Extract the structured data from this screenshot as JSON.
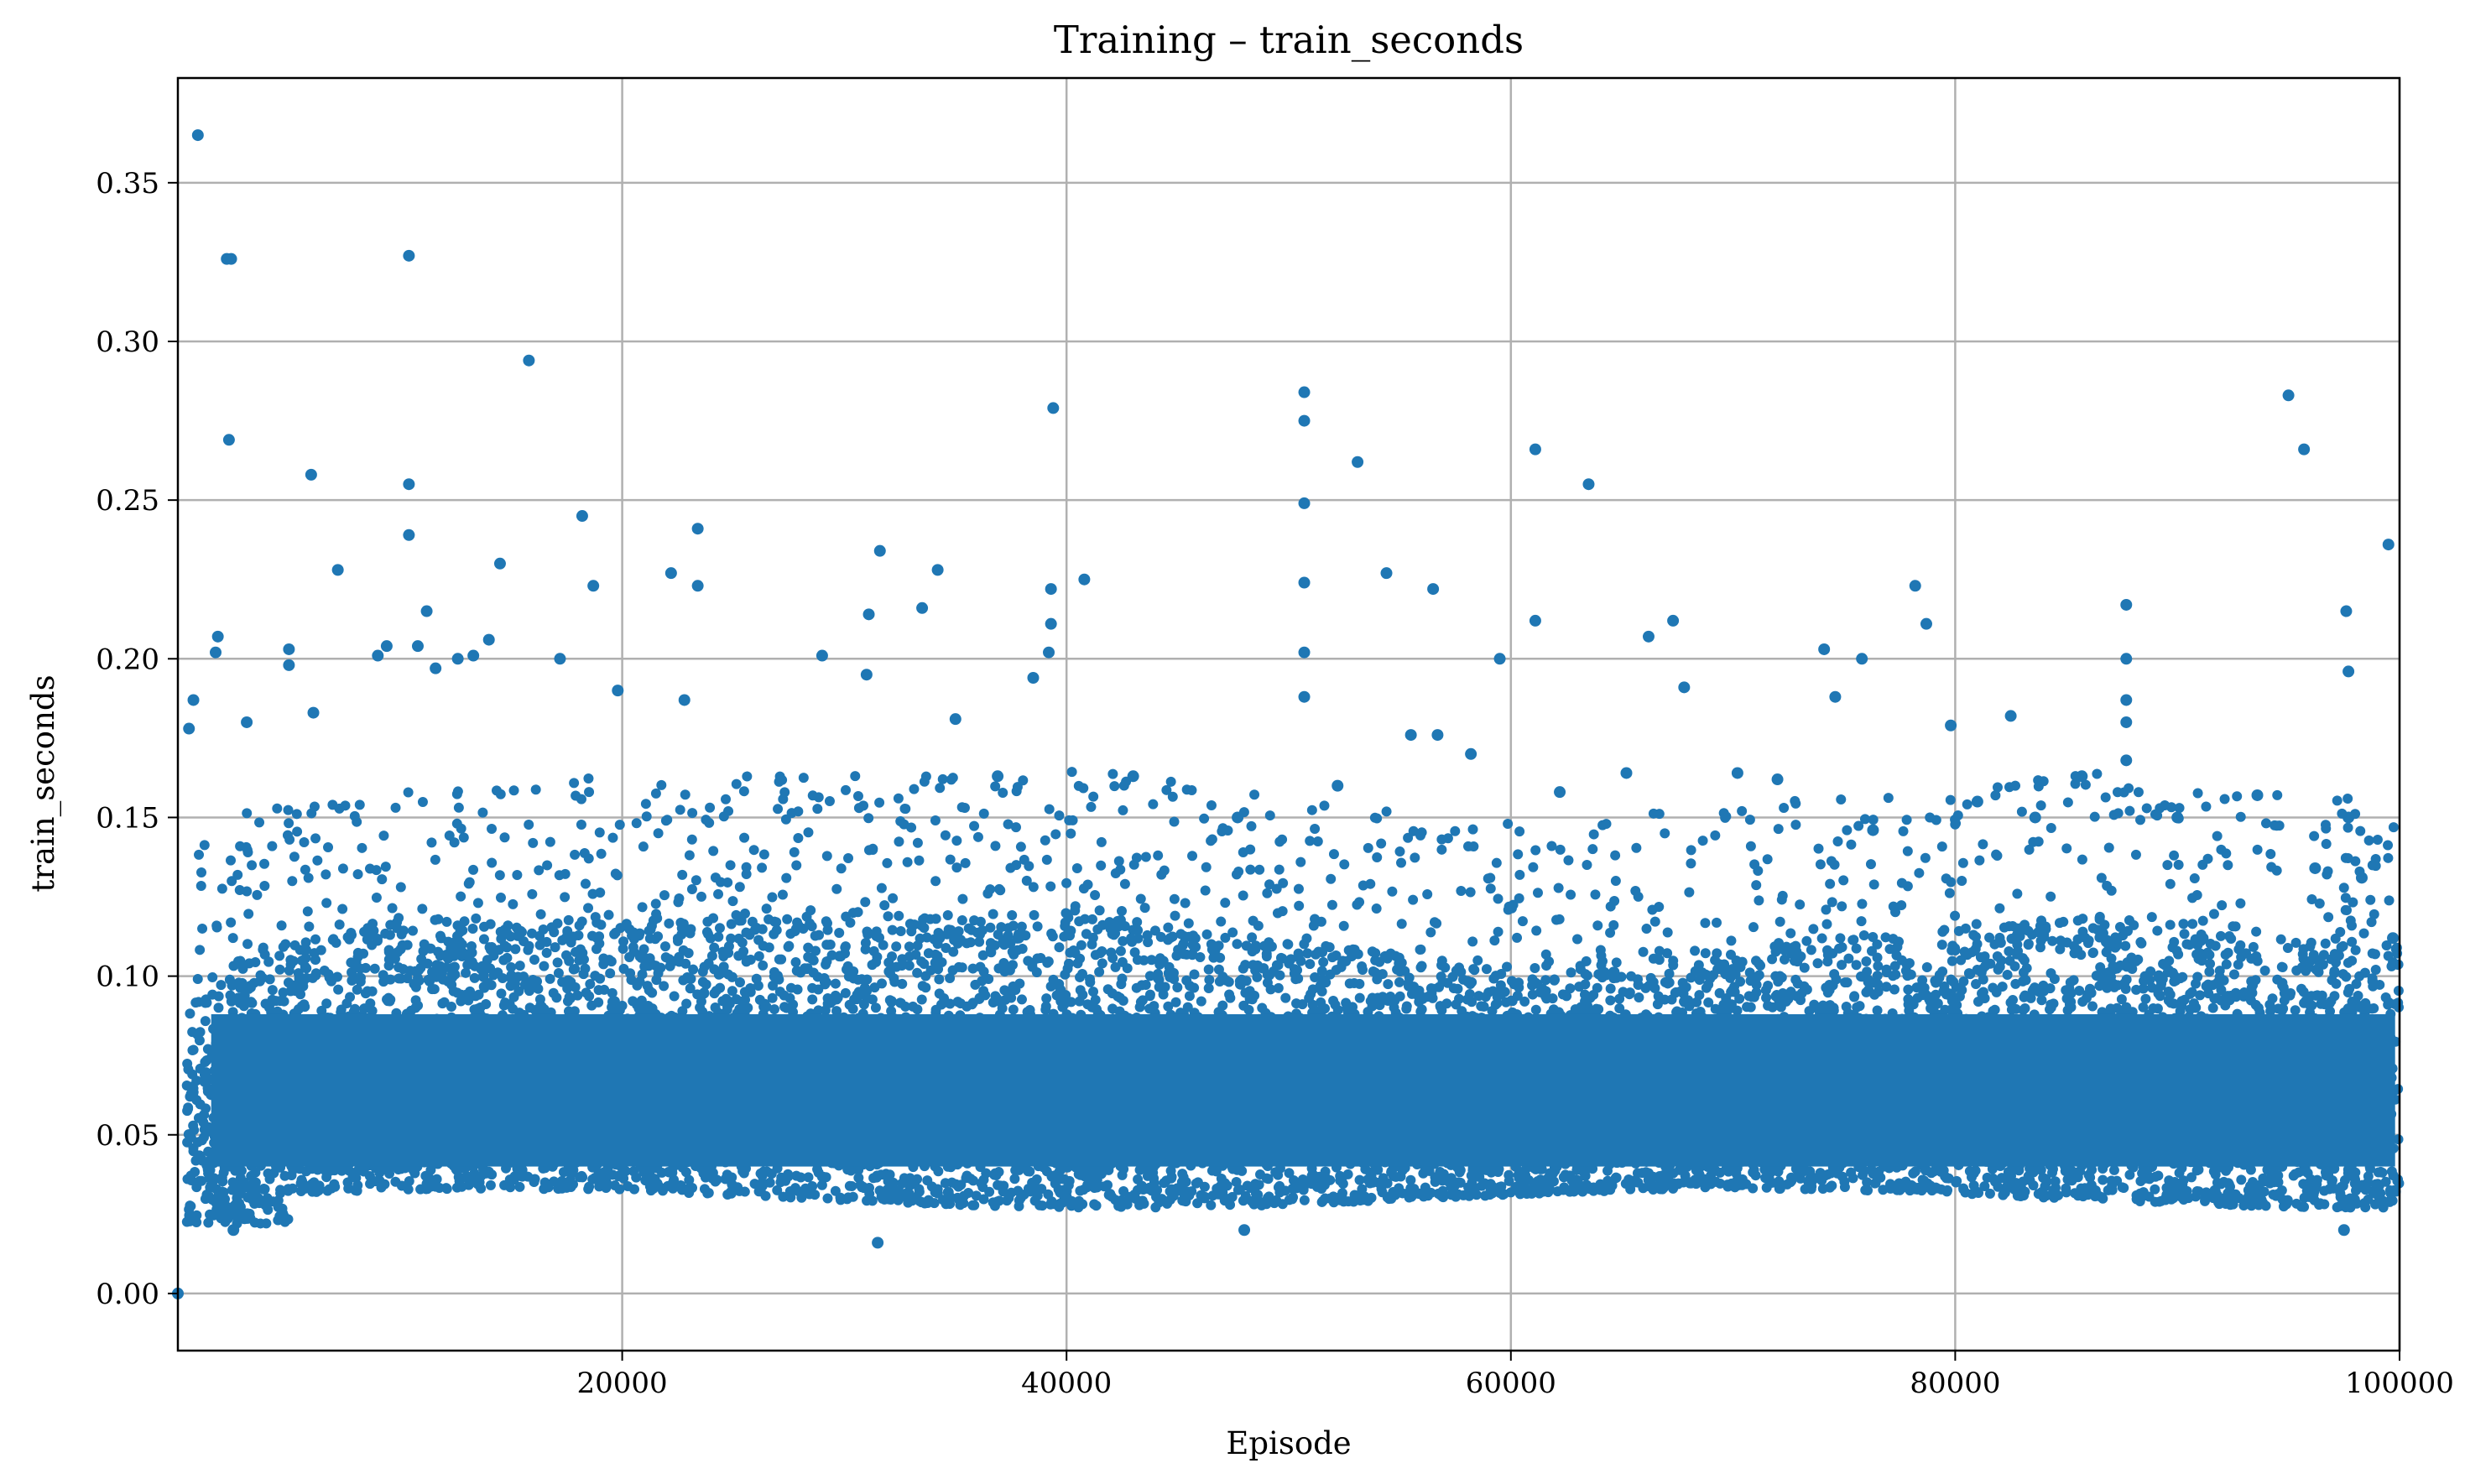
{
  "chart_data": {
    "type": "scatter",
    "title": "Training – train_seconds",
    "xlabel": "Episode",
    "ylabel": "train_seconds",
    "xlim": [
      0,
      100000
    ],
    "ylim": [
      -0.018,
      0.383
    ],
    "grid": true,
    "color": "#1f77b4",
    "x_ticks": [
      20000,
      40000,
      60000,
      80000,
      100000
    ],
    "x_tick_labels": [
      "20000",
      "40000",
      "60000",
      "80000",
      "100000"
    ],
    "y_ticks": [
      0.0,
      0.05,
      0.1,
      0.15,
      0.2,
      0.25,
      0.3,
      0.35
    ],
    "y_tick_labels": [
      "0.00",
      "0.05",
      "0.10",
      "0.15",
      "0.20",
      "0.25",
      "0.30",
      "0.35"
    ],
    "series": [
      {
        "points": [
          [
            0,
            0.0
          ],
          [
            900,
            0.365
          ],
          [
            2200,
            0.326
          ],
          [
            2400,
            0.326
          ],
          [
            2300,
            0.269
          ],
          [
            10400,
            0.327
          ],
          [
            15800,
            0.294
          ],
          [
            6000,
            0.258
          ],
          [
            10400,
            0.255
          ],
          [
            10400,
            0.239
          ],
          [
            7200,
            0.228
          ],
          [
            14500,
            0.23
          ],
          [
            18200,
            0.245
          ],
          [
            18700,
            0.223
          ],
          [
            22200,
            0.227
          ],
          [
            23400,
            0.241
          ],
          [
            23400,
            0.223
          ],
          [
            31600,
            0.234
          ],
          [
            31100,
            0.214
          ],
          [
            33500,
            0.216
          ],
          [
            34200,
            0.228
          ],
          [
            39400,
            0.279
          ],
          [
            39300,
            0.222
          ],
          [
            39300,
            0.211
          ],
          [
            39200,
            0.202
          ],
          [
            40800,
            0.225
          ],
          [
            38500,
            0.194
          ],
          [
            50700,
            0.284
          ],
          [
            50700,
            0.275
          ],
          [
            50700,
            0.249
          ],
          [
            50700,
            0.224
          ],
          [
            50700,
            0.202
          ],
          [
            50700,
            0.188
          ],
          [
            53100,
            0.262
          ],
          [
            54400,
            0.227
          ],
          [
            56500,
            0.222
          ],
          [
            61100,
            0.266
          ],
          [
            61100,
            0.212
          ],
          [
            63500,
            0.255
          ],
          [
            59500,
            0.2
          ],
          [
            66200,
            0.207
          ],
          [
            67300,
            0.212
          ],
          [
            67800,
            0.191
          ],
          [
            74100,
            0.203
          ],
          [
            74600,
            0.188
          ],
          [
            75800,
            0.2
          ],
          [
            78200,
            0.223
          ],
          [
            78700,
            0.211
          ],
          [
            79800,
            0.179
          ],
          [
            82500,
            0.182
          ],
          [
            87700,
            0.217
          ],
          [
            87700,
            0.2
          ],
          [
            87700,
            0.187
          ],
          [
            87700,
            0.18
          ],
          [
            87700,
            0.168
          ],
          [
            95000,
            0.283
          ],
          [
            95700,
            0.266
          ],
          [
            97600,
            0.215
          ],
          [
            97700,
            0.196
          ],
          [
            97700,
            0.15
          ],
          [
            99500,
            0.236
          ],
          [
            31500,
            0.016
          ],
          [
            48000,
            0.02
          ],
          [
            97500,
            0.02
          ],
          [
            2500,
            0.02
          ],
          [
            1800,
            0.207
          ],
          [
            1700,
            0.202
          ],
          [
            700,
            0.187
          ],
          [
            500,
            0.178
          ],
          [
            3100,
            0.18
          ],
          [
            5000,
            0.203
          ],
          [
            5000,
            0.198
          ],
          [
            6100,
            0.183
          ],
          [
            10800,
            0.204
          ],
          [
            11200,
            0.215
          ],
          [
            11600,
            0.197
          ],
          [
            13300,
            0.201
          ],
          [
            14000,
            0.206
          ],
          [
            17200,
            0.2
          ],
          [
            19800,
            0.19
          ],
          [
            12600,
            0.2
          ],
          [
            9400,
            0.204
          ],
          [
            9000,
            0.201
          ],
          [
            22800,
            0.187
          ],
          [
            29000,
            0.201
          ],
          [
            31000,
            0.195
          ],
          [
            35000,
            0.181
          ],
          [
            36900,
            0.163
          ],
          [
            43000,
            0.163
          ],
          [
            47700,
            0.15
          ],
          [
            52200,
            0.16
          ],
          [
            55500,
            0.176
          ],
          [
            56700,
            0.176
          ],
          [
            58200,
            0.17
          ],
          [
            62200,
            0.158
          ],
          [
            65200,
            0.164
          ],
          [
            70200,
            0.164
          ],
          [
            72000,
            0.162
          ],
          [
            76300,
            0.146
          ],
          [
            81000,
            0.155
          ],
          [
            83600,
            0.15
          ],
          [
            85700,
            0.163
          ],
          [
            90000,
            0.15
          ],
          [
            93600,
            0.157
          ],
          [
            96200,
            0.134
          ],
          [
            98300,
            0.131
          ],
          [
            99700,
            0.112
          ]
        ]
      }
    ]
  }
}
